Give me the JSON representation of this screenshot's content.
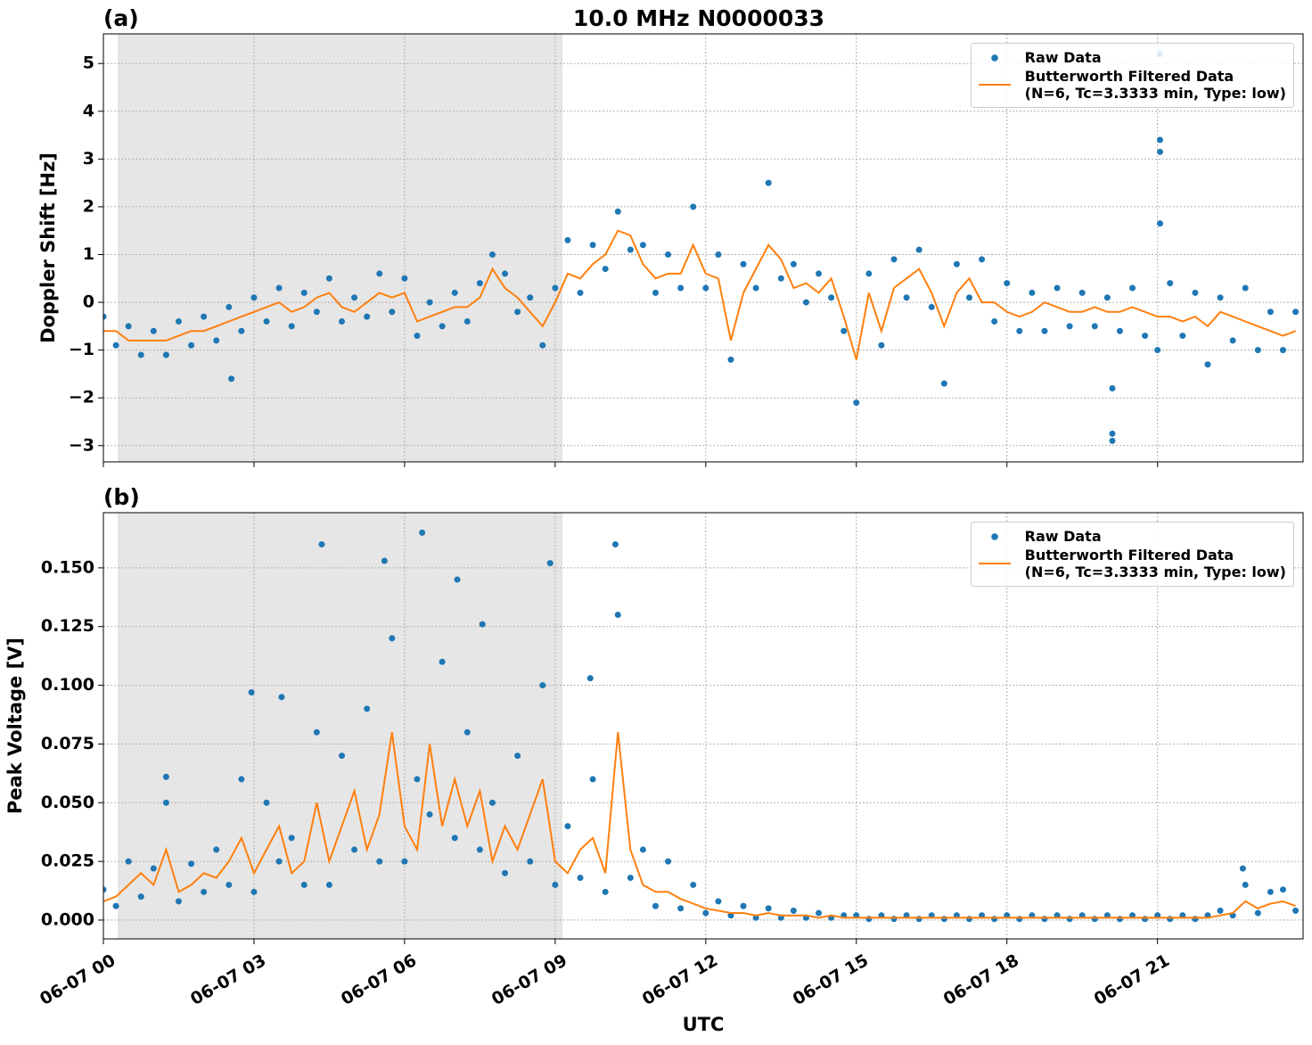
{
  "chart_data": [
    {
      "type": "line",
      "title": "10.0 MHz N0000033",
      "panel_label": "(a)",
      "y_label": "Doppler Shift [Hz]",
      "xlim": [
        0,
        23.9
      ],
      "ylim": [
        -3.34,
        5.62
      ],
      "grid": true,
      "legend": "upper right",
      "shaded_span": [
        0.3,
        9.13
      ],
      "xticks": [
        0,
        3,
        6,
        9,
        12,
        15,
        18,
        21
      ],
      "yticks": [
        {
          "value": -3,
          "label": "−3"
        },
        {
          "value": -2,
          "label": "−2"
        },
        {
          "value": -1,
          "label": "−1"
        },
        0,
        1,
        2,
        3,
        4,
        5
      ],
      "series": [
        {
          "name": "Raw Data",
          "color": "#1f77b4",
          "style": "markers",
          "x": [
            0,
            0.25,
            0.5,
            0.75,
            1,
            1.25,
            1.5,
            1.75,
            2,
            2.25,
            2.5,
            2.75,
            3,
            3.25,
            3.5,
            3.75,
            4,
            4.25,
            4.5,
            4.75,
            5,
            5.25,
            5.5,
            5.75,
            6,
            6.25,
            6.5,
            6.75,
            7,
            7.25,
            7.5,
            7.75,
            8,
            8.25,
            8.5,
            8.75,
            9,
            9.25,
            9.5,
            9.75,
            10,
            10.25,
            10.5,
            10.75,
            11,
            11.25,
            11.5,
            11.75,
            12,
            12.25,
            12.5,
            12.75,
            13,
            13.25,
            13.5,
            13.75,
            14,
            14.25,
            14.5,
            14.75,
            15,
            15.25,
            15.5,
            15.75,
            16,
            16.25,
            16.5,
            16.75,
            17,
            17.25,
            17.5,
            17.75,
            18,
            18.25,
            18.5,
            18.75,
            19,
            19.25,
            19.5,
            19.75,
            20,
            20.25,
            20.5,
            20.75,
            21,
            21.25,
            21.5,
            21.75,
            22,
            22.25,
            22.5,
            22.75,
            23,
            23.25,
            23.5,
            23.75,
            2.55,
            20.1,
            20.1,
            20.1,
            21.05,
            21.05,
            21.05,
            21.05
          ],
          "values": [
            -0.3,
            -0.9,
            -0.5,
            -1.1,
            -0.6,
            -1.1,
            -0.4,
            -0.9,
            -0.3,
            -0.8,
            -0.1,
            -0.6,
            0.1,
            -0.4,
            0.3,
            -0.5,
            0.2,
            -0.2,
            0.5,
            -0.4,
            0.1,
            -0.3,
            0.6,
            -0.2,
            0.5,
            -0.7,
            0.0,
            -0.5,
            0.2,
            -0.4,
            0.4,
            1.0,
            0.6,
            -0.2,
            0.1,
            -0.9,
            0.3,
            1.3,
            0.2,
            1.2,
            0.7,
            1.9,
            1.1,
            1.2,
            0.2,
            1.0,
            0.3,
            2.0,
            0.3,
            1.0,
            -1.2,
            0.8,
            0.3,
            2.5,
            0.5,
            0.8,
            0.0,
            0.6,
            0.1,
            -0.6,
            -2.1,
            0.6,
            -0.9,
            0.9,
            0.1,
            1.1,
            -0.1,
            -1.7,
            0.8,
            0.1,
            0.9,
            -0.4,
            0.4,
            -0.6,
            0.2,
            -0.6,
            0.3,
            -0.5,
            0.2,
            -0.5,
            0.1,
            -0.6,
            0.3,
            -0.7,
            -1.0,
            0.4,
            -0.7,
            0.2,
            -1.3,
            0.1,
            -0.8,
            0.3,
            -1.0,
            -0.2,
            -1.0,
            -0.2,
            -1.6,
            -2.75,
            -2.9,
            -1.8,
            5.2,
            3.4,
            3.15,
            1.65
          ]
        },
        {
          "name": "Butterworth Filtered Data\n(N=6, Tc=3.3333 min, Type: low)",
          "color": "#ff7f0e",
          "style": "line",
          "x": [
            0,
            0.25,
            0.5,
            0.75,
            1,
            1.25,
            1.5,
            1.75,
            2,
            2.25,
            2.5,
            2.75,
            3,
            3.25,
            3.5,
            3.75,
            4,
            4.25,
            4.5,
            4.75,
            5,
            5.25,
            5.5,
            5.75,
            6,
            6.25,
            6.5,
            6.75,
            7,
            7.25,
            7.5,
            7.75,
            8,
            8.25,
            8.5,
            8.75,
            9,
            9.25,
            9.5,
            9.75,
            10,
            10.25,
            10.5,
            10.75,
            11,
            11.25,
            11.5,
            11.75,
            12,
            12.25,
            12.5,
            12.75,
            13,
            13.25,
            13.5,
            13.75,
            14,
            14.25,
            14.5,
            14.75,
            15,
            15.25,
            15.5,
            15.75,
            16,
            16.25,
            16.5,
            16.75,
            17,
            17.25,
            17.5,
            17.75,
            18,
            18.25,
            18.5,
            18.75,
            19,
            19.25,
            19.5,
            19.75,
            20,
            20.25,
            20.5,
            20.75,
            21,
            21.25,
            21.5,
            21.75,
            22,
            22.25,
            22.5,
            22.75,
            23,
            23.25,
            23.5,
            23.75
          ],
          "values": [
            -0.6,
            -0.6,
            -0.8,
            -0.8,
            -0.8,
            -0.8,
            -0.7,
            -0.6,
            -0.6,
            -0.5,
            -0.4,
            -0.3,
            -0.2,
            -0.1,
            0.0,
            -0.2,
            -0.1,
            0.1,
            0.2,
            -0.1,
            -0.2,
            0.0,
            0.2,
            0.1,
            0.2,
            -0.4,
            -0.3,
            -0.2,
            -0.1,
            -0.1,
            0.1,
            0.7,
            0.3,
            0.1,
            -0.2,
            -0.5,
            0.0,
            0.6,
            0.5,
            0.8,
            1.0,
            1.5,
            1.4,
            0.8,
            0.5,
            0.6,
            0.6,
            1.2,
            0.6,
            0.5,
            -0.8,
            0.2,
            0.7,
            1.2,
            0.9,
            0.3,
            0.4,
            0.2,
            0.5,
            -0.3,
            -1.2,
            0.2,
            -0.6,
            0.3,
            0.5,
            0.7,
            0.2,
            -0.5,
            0.2,
            0.5,
            0.0,
            0.0,
            -0.2,
            -0.3,
            -0.2,
            0.0,
            -0.1,
            -0.2,
            -0.2,
            -0.1,
            -0.2,
            -0.2,
            -0.1,
            -0.2,
            -0.3,
            -0.3,
            -0.4,
            -0.3,
            -0.5,
            -0.2,
            -0.3,
            -0.4,
            -0.5,
            -0.6,
            -0.7,
            -0.6
          ]
        }
      ]
    },
    {
      "type": "line",
      "panel_label": "(b)",
      "y_label": "Peak Voltage [V]",
      "x_label": "UTC",
      "xlim": [
        0,
        23.9
      ],
      "ylim": [
        -0.008,
        0.1735
      ],
      "grid": true,
      "legend": "upper right",
      "shaded_span": [
        0.3,
        9.13
      ],
      "xticks": [
        {
          "value": 0,
          "label": "06-07 00"
        },
        {
          "value": 3,
          "label": "06-07 03"
        },
        {
          "value": 6,
          "label": "06-07 06"
        },
        {
          "value": 9,
          "label": "06-07 09"
        },
        {
          "value": 12,
          "label": "06-07 12"
        },
        {
          "value": 15,
          "label": "06-07 15"
        },
        {
          "value": 18,
          "label": "06-07 18"
        },
        {
          "value": 21,
          "label": "06-07 21"
        }
      ],
      "yticks": [
        {
          "value": 0,
          "label": "0.000"
        },
        {
          "value": 0.025,
          "label": "0.025"
        },
        {
          "value": 0.05,
          "label": "0.050"
        },
        {
          "value": 0.075,
          "label": "0.075"
        },
        {
          "value": 0.1,
          "label": "0.100"
        },
        {
          "value": 0.125,
          "label": "0.125"
        },
        {
          "value": 0.15,
          "label": "0.150"
        }
      ],
      "series": [
        {
          "name": "Raw Data",
          "color": "#1f77b4",
          "style": "markers",
          "x": [
            0,
            0.25,
            0.5,
            0.75,
            1,
            1.25,
            1.5,
            1.75,
            2,
            2.25,
            2.5,
            2.75,
            3,
            3.25,
            3.5,
            3.75,
            4,
            4.25,
            4.5,
            4.75,
            5,
            5.25,
            5.5,
            5.75,
            6,
            6.25,
            6.5,
            6.75,
            7,
            7.25,
            7.5,
            7.75,
            8,
            8.25,
            8.5,
            8.75,
            9,
            9.25,
            9.5,
            9.75,
            10,
            10.25,
            10.5,
            10.75,
            11,
            11.25,
            11.5,
            11.75,
            12,
            12.25,
            12.5,
            12.75,
            13,
            13.25,
            13.5,
            13.75,
            14,
            14.25,
            14.5,
            14.75,
            15,
            15.25,
            15.5,
            15.75,
            16,
            16.25,
            16.5,
            16.75,
            17,
            17.25,
            17.5,
            17.75,
            18,
            18.25,
            18.5,
            18.75,
            19,
            19.25,
            19.5,
            19.75,
            20,
            20.25,
            20.5,
            20.75,
            21,
            21.25,
            21.5,
            21.75,
            22,
            22.25,
            22.5,
            22.75,
            23,
            23.25,
            23.5,
            23.75,
            1.25,
            2.95,
            3.55,
            4.35,
            5.6,
            6.35,
            7.05,
            7.55,
            8.9,
            9.7,
            10.2,
            22.7
          ],
          "values": [
            0.013,
            0.006,
            0.025,
            0.01,
            0.022,
            0.05,
            0.008,
            0.024,
            0.012,
            0.03,
            0.015,
            0.06,
            0.012,
            0.05,
            0.025,
            0.035,
            0.015,
            0.08,
            0.015,
            0.07,
            0.03,
            0.09,
            0.025,
            0.12,
            0.025,
            0.06,
            0.045,
            0.11,
            0.035,
            0.08,
            0.03,
            0.05,
            0.02,
            0.07,
            0.025,
            0.1,
            0.015,
            0.04,
            0.018,
            0.06,
            0.012,
            0.13,
            0.018,
            0.03,
            0.006,
            0.025,
            0.005,
            0.015,
            0.003,
            0.008,
            0.002,
            0.006,
            0.001,
            0.005,
            0.001,
            0.004,
            0.001,
            0.003,
            0.001,
            0.002,
            0.002,
            0.0005,
            0.002,
            0.0005,
            0.002,
            0.0005,
            0.002,
            0.0005,
            0.002,
            0.0005,
            0.002,
            0.0005,
            0.002,
            0.0005,
            0.002,
            0.0005,
            0.002,
            0.0005,
            0.002,
            0.0005,
            0.002,
            0.0005,
            0.002,
            0.0005,
            0.002,
            0.0005,
            0.002,
            0.0005,
            0.002,
            0.004,
            0.002,
            0.015,
            0.003,
            0.012,
            0.013,
            0.004,
            0.061,
            0.097,
            0.095,
            0.16,
            0.153,
            0.165,
            0.145,
            0.126,
            0.152,
            0.103,
            0.16,
            0.022
          ]
        },
        {
          "name": "Butterworth Filtered Data\n(N=6, Tc=3.3333 min, Type: low)",
          "color": "#ff7f0e",
          "style": "line",
          "x": [
            0,
            0.25,
            0.5,
            0.75,
            1,
            1.25,
            1.5,
            1.75,
            2,
            2.25,
            2.5,
            2.75,
            3,
            3.25,
            3.5,
            3.75,
            4,
            4.25,
            4.5,
            4.75,
            5,
            5.25,
            5.5,
            5.75,
            6,
            6.25,
            6.5,
            6.75,
            7,
            7.25,
            7.5,
            7.75,
            8,
            8.25,
            8.5,
            8.75,
            9,
            9.25,
            9.5,
            9.75,
            10,
            10.25,
            10.5,
            10.75,
            11,
            11.25,
            11.5,
            11.75,
            12,
            12.25,
            12.5,
            12.75,
            13,
            13.25,
            13.5,
            13.75,
            14,
            14.25,
            14.5,
            14.75,
            15,
            15.25,
            15.5,
            15.75,
            16,
            16.25,
            16.5,
            16.75,
            17,
            17.25,
            17.5,
            17.75,
            18,
            18.25,
            18.5,
            18.75,
            19,
            19.25,
            19.5,
            19.75,
            20,
            20.25,
            20.5,
            20.75,
            21,
            21.25,
            21.5,
            21.75,
            22,
            22.25,
            22.5,
            22.75,
            23,
            23.25,
            23.5,
            23.75
          ],
          "values": [
            0.008,
            0.01,
            0.015,
            0.02,
            0.015,
            0.03,
            0.012,
            0.015,
            0.02,
            0.018,
            0.025,
            0.035,
            0.02,
            0.03,
            0.04,
            0.02,
            0.025,
            0.05,
            0.025,
            0.04,
            0.055,
            0.03,
            0.045,
            0.08,
            0.04,
            0.03,
            0.075,
            0.04,
            0.06,
            0.04,
            0.055,
            0.025,
            0.04,
            0.03,
            0.045,
            0.06,
            0.025,
            0.02,
            0.03,
            0.035,
            0.02,
            0.08,
            0.03,
            0.015,
            0.012,
            0.012,
            0.009,
            0.007,
            0.005,
            0.004,
            0.003,
            0.003,
            0.002,
            0.003,
            0.002,
            0.002,
            0.002,
            0.001,
            0.002,
            0.001,
            0.001,
            0.001,
            0.001,
            0.001,
            0.001,
            0.001,
            0.001,
            0.001,
            0.001,
            0.001,
            0.001,
            0.001,
            0.001,
            0.001,
            0.001,
            0.001,
            0.001,
            0.001,
            0.001,
            0.001,
            0.001,
            0.001,
            0.001,
            0.001,
            0.001,
            0.001,
            0.001,
            0.001,
            0.001,
            0.002,
            0.003,
            0.008,
            0.005,
            0.007,
            0.008,
            0.006
          ]
        }
      ]
    }
  ]
}
